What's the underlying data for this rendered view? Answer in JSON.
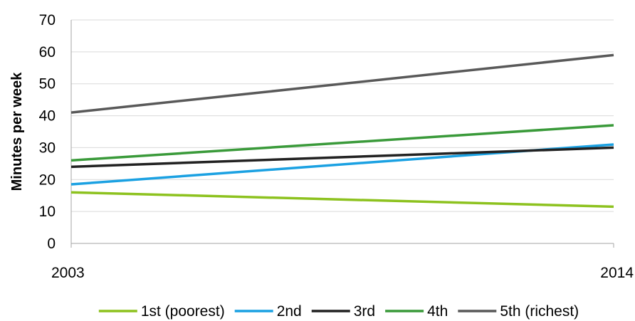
{
  "chart_data": {
    "type": "line",
    "title": "",
    "xlabel": "",
    "ylabel": "Minutes per week",
    "x": [
      "2003",
      "2014"
    ],
    "ylim": [
      0,
      70
    ],
    "yticks": [
      0,
      10,
      20,
      30,
      40,
      50,
      60,
      70
    ],
    "grid": true,
    "legend_position": "bottom",
    "series": [
      {
        "name": "1st (poorest)",
        "values": [
          16,
          11.5
        ],
        "color": "#8dc21f"
      },
      {
        "name": "2nd",
        "values": [
          18.5,
          31
        ],
        "color": "#1ba1e2"
      },
      {
        "name": "3rd",
        "values": [
          24,
          30
        ],
        "color": "#222222"
      },
      {
        "name": "4th",
        "values": [
          26,
          37
        ],
        "color": "#3a9a3a"
      },
      {
        "name": "5th (richest)",
        "values": [
          41,
          59
        ],
        "color": "#595959"
      }
    ]
  }
}
